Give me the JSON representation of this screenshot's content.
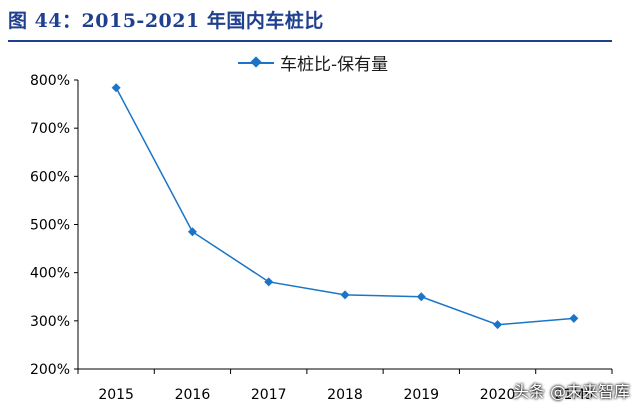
{
  "title": "图 44：2015-2021 年国内车桩比",
  "watermark": "头条 @未来智库",
  "colors": {
    "title": "#1f3f8f",
    "series": "#1a75c8",
    "axis": "#000000"
  },
  "chart_data": {
    "type": "line",
    "title": "图 44：2015-2021 年国内车桩比",
    "categories": [
      "2015",
      "2016",
      "2017",
      "2018",
      "2019",
      "2020",
      "21M9"
    ],
    "series": [
      {
        "name": "车桩比-保有量",
        "values": [
          784,
          485,
          381,
          354,
          350,
          292,
          305
        ],
        "marker": "diamond"
      }
    ],
    "yticks": [
      "200%",
      "300%",
      "400%",
      "500%",
      "600%",
      "700%",
      "800%"
    ],
    "ylim": [
      200,
      800
    ],
    "y_unit": "%",
    "legend": "top-center",
    "grid": false
  }
}
